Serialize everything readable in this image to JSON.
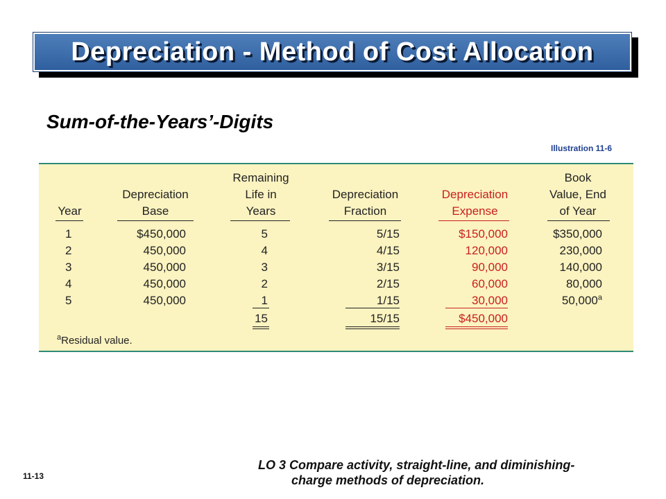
{
  "title": "Depreciation - Method of Cost Allocation",
  "subtitle": "Sum-of-the-Years’-Digits",
  "illustration": "Illustration 11-6",
  "table": {
    "headers": {
      "year": [
        "Year"
      ],
      "base": [
        "Depreciation",
        "Base"
      ],
      "life": [
        "Remaining",
        "Life in",
        "Years"
      ],
      "fraction": [
        "Depreciation",
        "Fraction"
      ],
      "expense": [
        "Depreciation",
        "Expense"
      ],
      "book": [
        "Book",
        "Value, End",
        "of Year"
      ]
    },
    "rows": [
      {
        "year": "1",
        "base": "$450,000",
        "life": "5",
        "fraction": "5/15",
        "expense": "$150,000",
        "book": "$350,000"
      },
      {
        "year": "2",
        "base": "450,000",
        "life": "4",
        "fraction": "4/15",
        "expense": "120,000",
        "book": "230,000"
      },
      {
        "year": "3",
        "base": "450,000",
        "life": "3",
        "fraction": "3/15",
        "expense": "90,000",
        "book": "140,000"
      },
      {
        "year": "4",
        "base": "450,000",
        "life": "2",
        "fraction": "2/15",
        "expense": "60,000",
        "book": "80,000"
      },
      {
        "year": "5",
        "base": "450,000",
        "life": "1",
        "fraction": "1/15",
        "expense": "30,000",
        "book": "50,000"
      }
    ],
    "totals": {
      "life": "15",
      "fraction": "15/15",
      "expense": "$450,000"
    },
    "footnote_mark": "a",
    "footnote": "Residual value."
  },
  "learning_objective": {
    "line1": "LO 3  Compare activity, straight-line, and diminishing-",
    "line2": "charge methods of depreciation."
  },
  "slide_number": "11-13",
  "colors": {
    "banner": "#3e6fae",
    "panel": "#fbf3c0",
    "expense": "#c8201e",
    "rule": "#2e8a78"
  }
}
